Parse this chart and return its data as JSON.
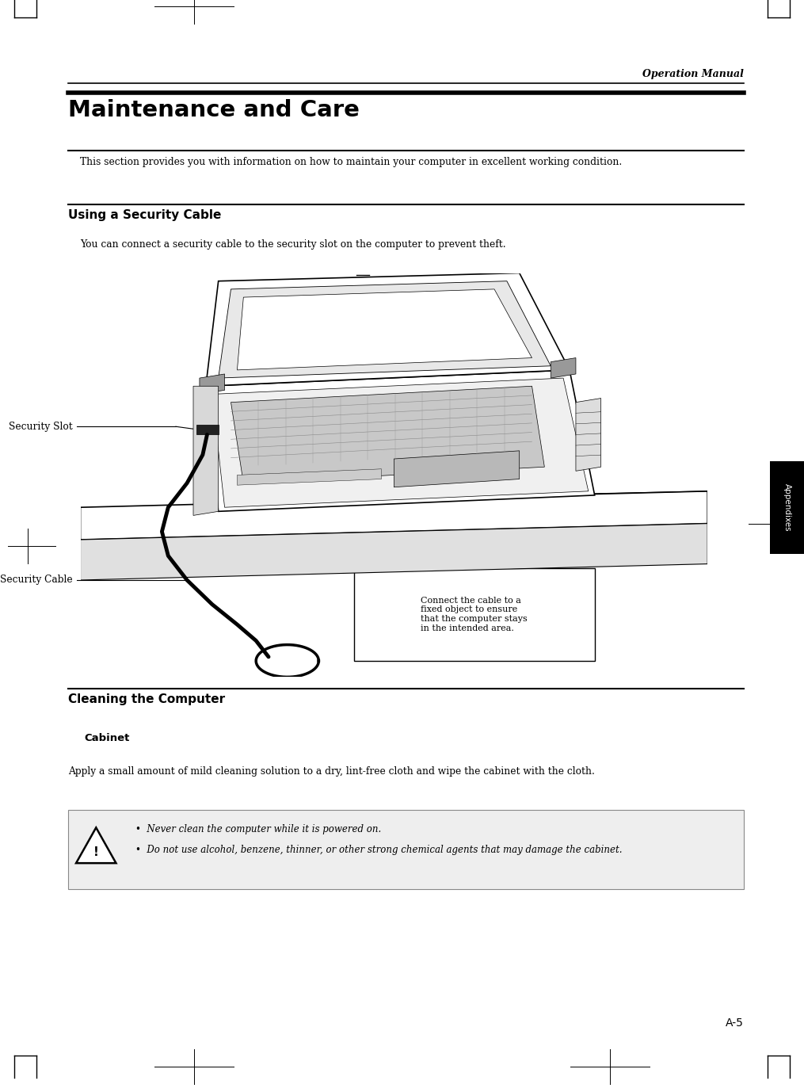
{
  "bg_color": "#ffffff",
  "page_width": 10.15,
  "page_height": 13.78,
  "header_text": "Operation Manual",
  "main_title": "Maintenance and Care",
  "section1_title": "Using a Security Cable",
  "section2_title": "Cleaning the Computer",
  "subsection1_title": "Cabinet",
  "intro_text": "This section provides you with information on how to maintain your computer in excellent working condition.",
  "security_para": "You can connect a security cable to the security slot on the computer to prevent theft.",
  "cabinet_para": "Apply a small amount of mild cleaning solution to a dry, lint-free cloth and wipe the cabinet with the cloth.",
  "warning_bullet1": "Never clean the computer while it is powered on.",
  "warning_bullet2": "Do not use alcohol, benzene, thinner, or other strong chemical agents that may damage the cabinet.",
  "label_security_slot": "Security Slot",
  "label_security_cable": "Security Cable",
  "callout_text": "Connect the cable to a\nfixed object to ensure\nthat the computer stays\nin the intended area.",
  "page_number": "A-5",
  "tab_text": "Appendixes",
  "line_color": "#000000",
  "warning_bg": "#eeeeee"
}
